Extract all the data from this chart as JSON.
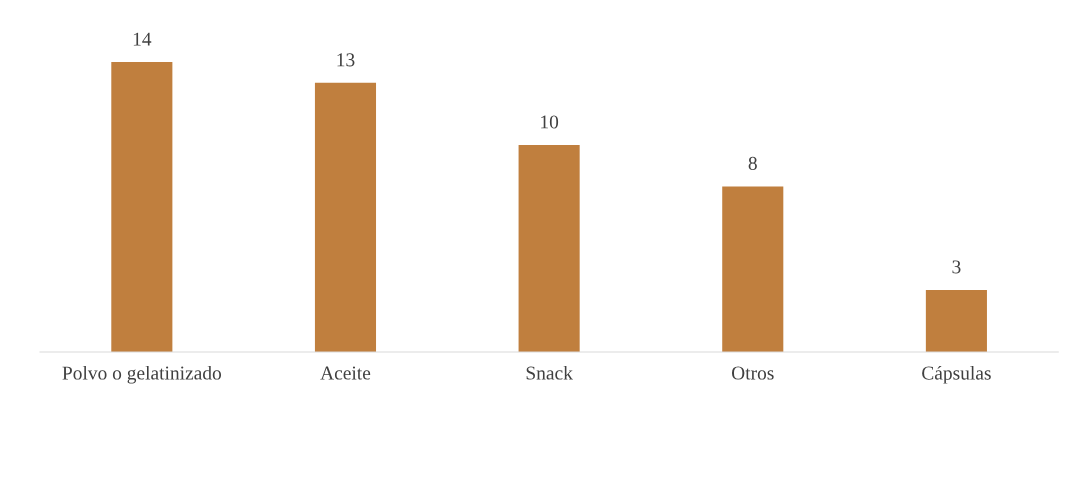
{
  "chart_data": {
    "type": "bar",
    "categories": [
      "Polvo o gelatinizado",
      "Aceite",
      "Snack",
      "Otros",
      "Cápsulas"
    ],
    "values": [
      14,
      13,
      10,
      8,
      3
    ],
    "color": "#c07f3e",
    "data_labels": true,
    "grid": false,
    "legend": false
  }
}
